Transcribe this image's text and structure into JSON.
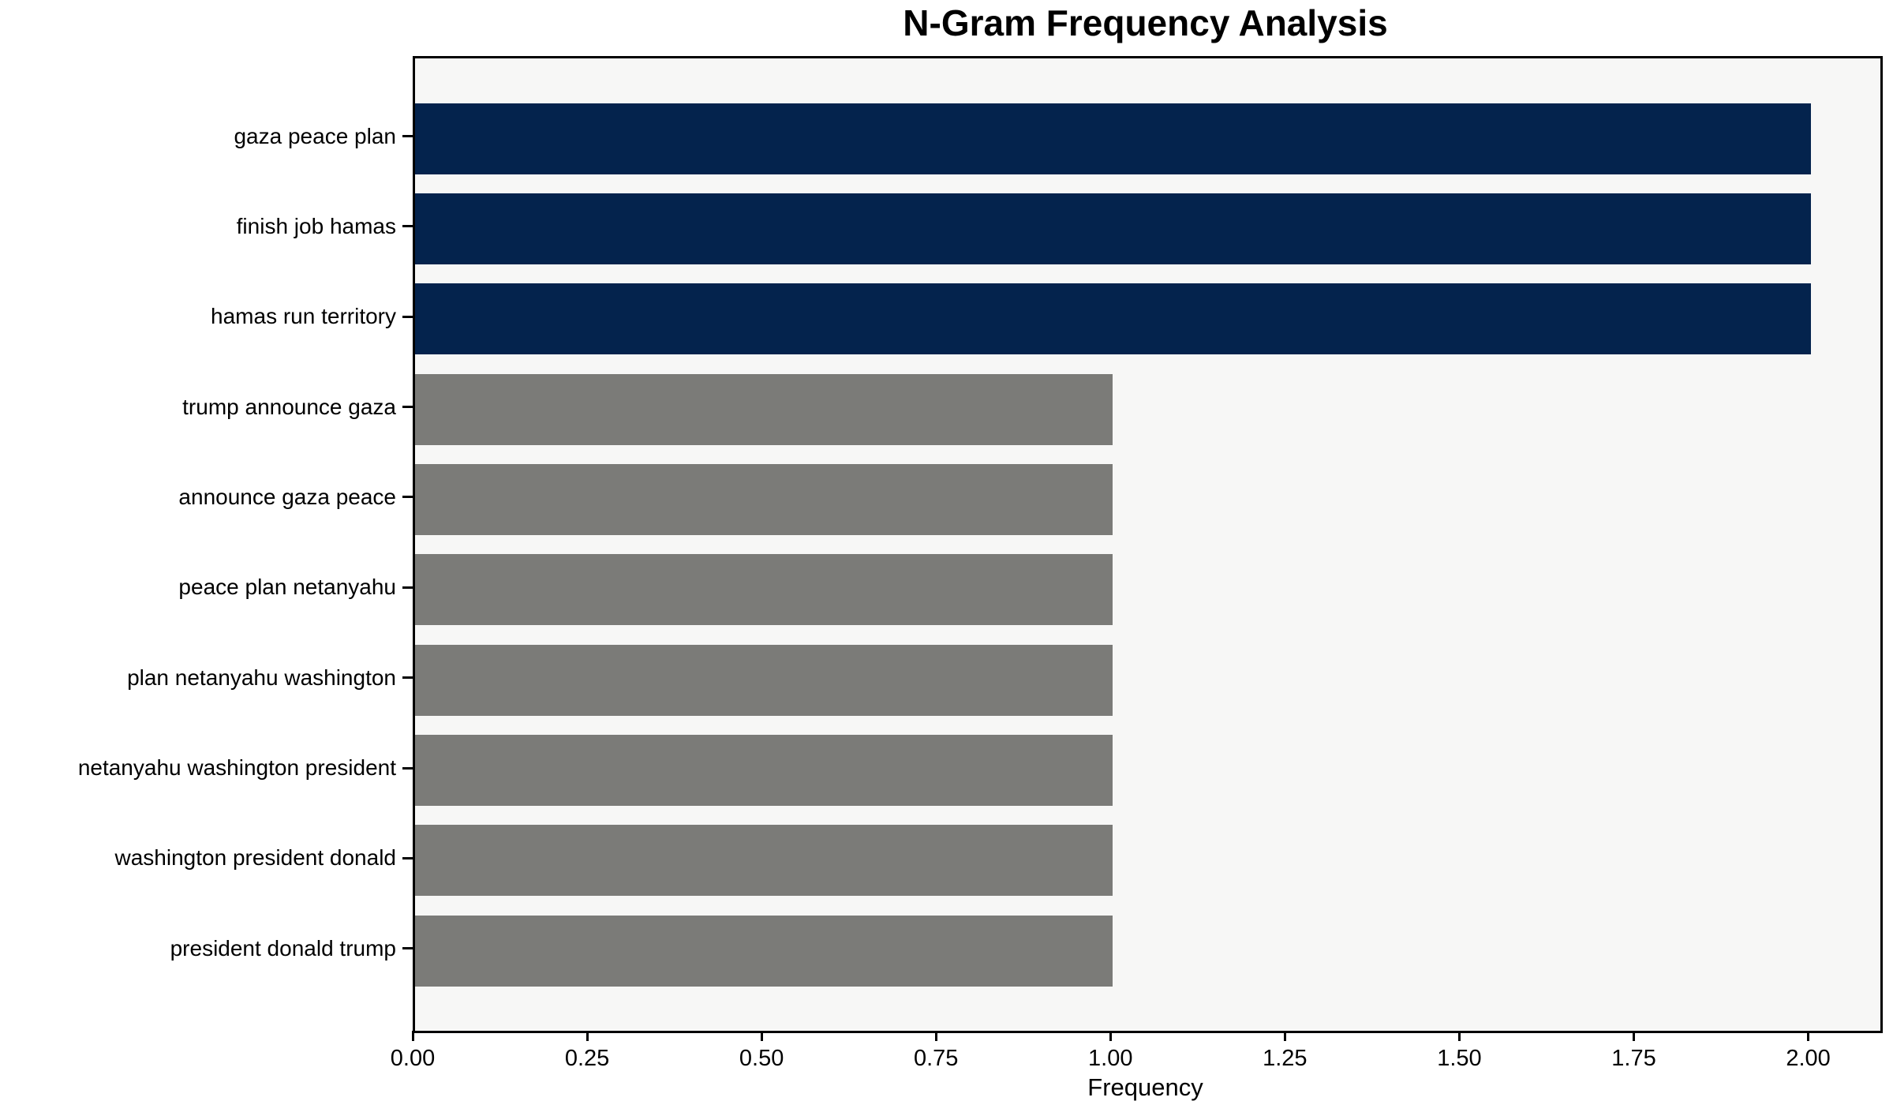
{
  "chart_data": {
    "type": "bar",
    "orientation": "horizontal",
    "title": "N-Gram Frequency Analysis",
    "xlabel": "Frequency",
    "ylabel": "",
    "categories": [
      "gaza peace plan",
      "finish job hamas",
      "hamas run territory",
      "trump announce gaza",
      "announce gaza peace",
      "peace plan netanyahu",
      "plan netanyahu washington",
      "netanyahu washington president",
      "washington president donald",
      "president donald trump"
    ],
    "values": [
      2,
      2,
      2,
      1,
      1,
      1,
      1,
      1,
      1,
      1
    ],
    "bar_colors": [
      "#04234d",
      "#04234d",
      "#04234d",
      "#7b7b78",
      "#7b7b78",
      "#7b7b78",
      "#7b7b78",
      "#7b7b78",
      "#7b7b78",
      "#7b7b78"
    ],
    "xlim": [
      0,
      2.1
    ],
    "xtick_values": [
      0.0,
      0.25,
      0.5,
      0.75,
      1.0,
      1.25,
      1.5,
      1.75,
      2.0
    ],
    "xtick_labels": [
      "0.00",
      "0.25",
      "0.50",
      "0.75",
      "1.00",
      "1.25",
      "1.50",
      "1.75",
      "2.00"
    ],
    "grid": false,
    "legend": "none",
    "colors": {
      "highlight_bar": "#04234d",
      "normal_bar": "#7b7b78",
      "plot_background": "#f7f7f6",
      "figure_background": "#ffffff",
      "axis": "#000000"
    }
  }
}
